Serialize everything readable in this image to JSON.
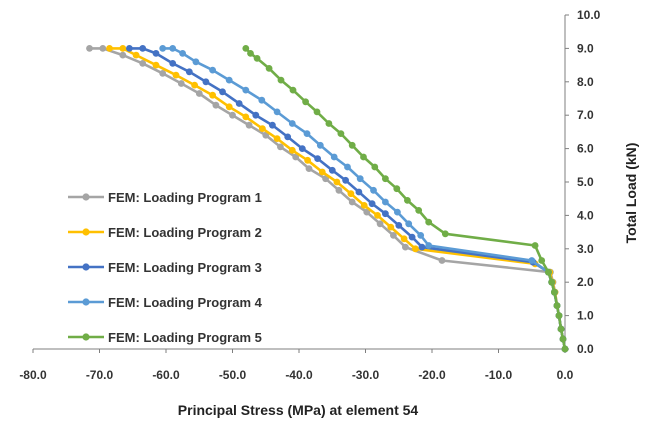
{
  "chart_data": {
    "type": "line",
    "xlabel": "Principal Stress (MPa) at element 54",
    "ylabel": "Total Load (kN)",
    "xlim": [
      -80,
      0
    ],
    "ylim": [
      0,
      10
    ],
    "x_ticks": [
      "-80.0",
      "-70.0",
      "-60.0",
      "-50.0",
      "-40.0",
      "-30.0",
      "-20.0",
      "-10.0",
      "0.0"
    ],
    "y_ticks": [
      "0.0",
      "1.0",
      "2.0",
      "3.0",
      "4.0",
      "5.0",
      "6.0",
      "7.0",
      "8.0",
      "9.0",
      "10.0"
    ],
    "grid": false,
    "y_axis_side": "right",
    "legend_position": "left",
    "series": [
      {
        "name": "FEM: Loading Program 1",
        "color": "#a5a5a5",
        "points": [
          [
            0.0,
            0.0
          ],
          [
            -0.3,
            0.3
          ],
          [
            -0.6,
            0.6
          ],
          [
            -0.9,
            1.0
          ],
          [
            -1.2,
            1.3
          ],
          [
            -1.5,
            1.7
          ],
          [
            -1.8,
            2.0
          ],
          [
            -2.2,
            2.3
          ],
          [
            -18.5,
            2.65
          ],
          [
            -24.0,
            3.05
          ],
          [
            -25.8,
            3.4
          ],
          [
            -27.8,
            3.75
          ],
          [
            -29.8,
            4.1
          ],
          [
            -32.0,
            4.4
          ],
          [
            -34.0,
            4.75
          ],
          [
            -36.0,
            5.1
          ],
          [
            -38.5,
            5.4
          ],
          [
            -40.5,
            5.75
          ],
          [
            -42.8,
            6.05
          ],
          [
            -45.0,
            6.4
          ],
          [
            -47.5,
            6.7
          ],
          [
            -50.0,
            7.0
          ],
          [
            -52.5,
            7.3
          ],
          [
            -55.0,
            7.65
          ],
          [
            -57.7,
            7.95
          ],
          [
            -60.5,
            8.25
          ],
          [
            -63.5,
            8.55
          ],
          [
            -66.5,
            8.8
          ],
          [
            -69.5,
            9.0
          ],
          [
            -71.5,
            9.0
          ]
        ]
      },
      {
        "name": "FEM: Loading Program 2",
        "color": "#ffc000",
        "points": [
          [
            0.0,
            0.0
          ],
          [
            -0.3,
            0.3
          ],
          [
            -0.6,
            0.6
          ],
          [
            -0.9,
            1.0
          ],
          [
            -1.2,
            1.3
          ],
          [
            -1.5,
            1.7
          ],
          [
            -1.9,
            2.0
          ],
          [
            -2.3,
            2.3
          ],
          [
            -4.5,
            2.55
          ],
          [
            -22.5,
            3.0
          ],
          [
            -24.2,
            3.3
          ],
          [
            -26.2,
            3.65
          ],
          [
            -28.2,
            4.0
          ],
          [
            -30.2,
            4.3
          ],
          [
            -32.2,
            4.65
          ],
          [
            -34.3,
            5.0
          ],
          [
            -36.5,
            5.3
          ],
          [
            -38.7,
            5.65
          ],
          [
            -41.0,
            5.95
          ],
          [
            -43.3,
            6.3
          ],
          [
            -45.5,
            6.6
          ],
          [
            -48.0,
            6.95
          ],
          [
            -50.5,
            7.25
          ],
          [
            -53.0,
            7.6
          ],
          [
            -55.7,
            7.9
          ],
          [
            -58.5,
            8.2
          ],
          [
            -61.5,
            8.5
          ],
          [
            -64.5,
            8.8
          ],
          [
            -66.5,
            9.0
          ],
          [
            -68.5,
            9.0
          ]
        ]
      },
      {
        "name": "FEM: Loading Program 3",
        "color": "#4472c4",
        "points": [
          [
            0.0,
            0.0
          ],
          [
            -0.3,
            0.3
          ],
          [
            -0.6,
            0.6
          ],
          [
            -0.9,
            1.0
          ],
          [
            -1.2,
            1.3
          ],
          [
            -1.6,
            1.7
          ],
          [
            -2.0,
            2.0
          ],
          [
            -2.5,
            2.3
          ],
          [
            -4.8,
            2.6
          ],
          [
            -21.5,
            3.05
          ],
          [
            -23.0,
            3.35
          ],
          [
            -25.0,
            3.7
          ],
          [
            -27.0,
            4.05
          ],
          [
            -29.0,
            4.35
          ],
          [
            -31.0,
            4.7
          ],
          [
            -33.0,
            5.05
          ],
          [
            -35.0,
            5.35
          ],
          [
            -37.2,
            5.7
          ],
          [
            -39.5,
            6.0
          ],
          [
            -41.7,
            6.35
          ],
          [
            -44.0,
            6.7
          ],
          [
            -46.5,
            7.0
          ],
          [
            -49.0,
            7.35
          ],
          [
            -51.5,
            7.7
          ],
          [
            -54.0,
            8.0
          ],
          [
            -56.5,
            8.3
          ],
          [
            -59.0,
            8.55
          ],
          [
            -61.5,
            8.85
          ],
          [
            -63.5,
            9.0
          ],
          [
            -65.5,
            9.0
          ]
        ]
      },
      {
        "name": "FEM: Loading Program 4",
        "color": "#5b9bd5",
        "points": [
          [
            0.0,
            0.0
          ],
          [
            -0.3,
            0.3
          ],
          [
            -0.6,
            0.6
          ],
          [
            -0.9,
            1.0
          ],
          [
            -1.2,
            1.3
          ],
          [
            -1.6,
            1.7
          ],
          [
            -2.0,
            2.0
          ],
          [
            -2.5,
            2.3
          ],
          [
            -5.0,
            2.65
          ],
          [
            -20.5,
            3.1
          ],
          [
            -21.7,
            3.4
          ],
          [
            -23.5,
            3.75
          ],
          [
            -25.2,
            4.1
          ],
          [
            -27.0,
            4.4
          ],
          [
            -28.8,
            4.75
          ],
          [
            -30.8,
            5.1
          ],
          [
            -32.7,
            5.45
          ],
          [
            -34.7,
            5.75
          ],
          [
            -36.8,
            6.1
          ],
          [
            -38.8,
            6.45
          ],
          [
            -41.0,
            6.75
          ],
          [
            -43.3,
            7.1
          ],
          [
            -45.6,
            7.45
          ],
          [
            -48.0,
            7.75
          ],
          [
            -50.5,
            8.05
          ],
          [
            -53.0,
            8.35
          ],
          [
            -55.5,
            8.6
          ],
          [
            -57.5,
            8.85
          ],
          [
            -59.0,
            9.0
          ],
          [
            -60.5,
            9.0
          ]
        ]
      },
      {
        "name": "FEM: Loading Program 5",
        "color": "#70ad47",
        "points": [
          [
            0.0,
            0.0
          ],
          [
            -0.3,
            0.3
          ],
          [
            -0.6,
            0.6
          ],
          [
            -0.9,
            1.0
          ],
          [
            -1.2,
            1.3
          ],
          [
            -1.6,
            1.7
          ],
          [
            -2.0,
            2.0
          ],
          [
            -2.5,
            2.3
          ],
          [
            -3.5,
            2.65
          ],
          [
            -4.5,
            3.1
          ],
          [
            -18.0,
            3.45
          ],
          [
            -20.5,
            3.8
          ],
          [
            -22.0,
            4.15
          ],
          [
            -23.7,
            4.45
          ],
          [
            -25.3,
            4.8
          ],
          [
            -27.0,
            5.1
          ],
          [
            -28.6,
            5.45
          ],
          [
            -30.3,
            5.75
          ],
          [
            -32.0,
            6.1
          ],
          [
            -33.7,
            6.45
          ],
          [
            -35.5,
            6.75
          ],
          [
            -37.3,
            7.1
          ],
          [
            -39.0,
            7.4
          ],
          [
            -40.9,
            7.75
          ],
          [
            -42.7,
            8.05
          ],
          [
            -44.5,
            8.4
          ],
          [
            -46.3,
            8.7
          ],
          [
            -47.3,
            8.85
          ],
          [
            -48.0,
            9.0
          ]
        ]
      }
    ]
  }
}
